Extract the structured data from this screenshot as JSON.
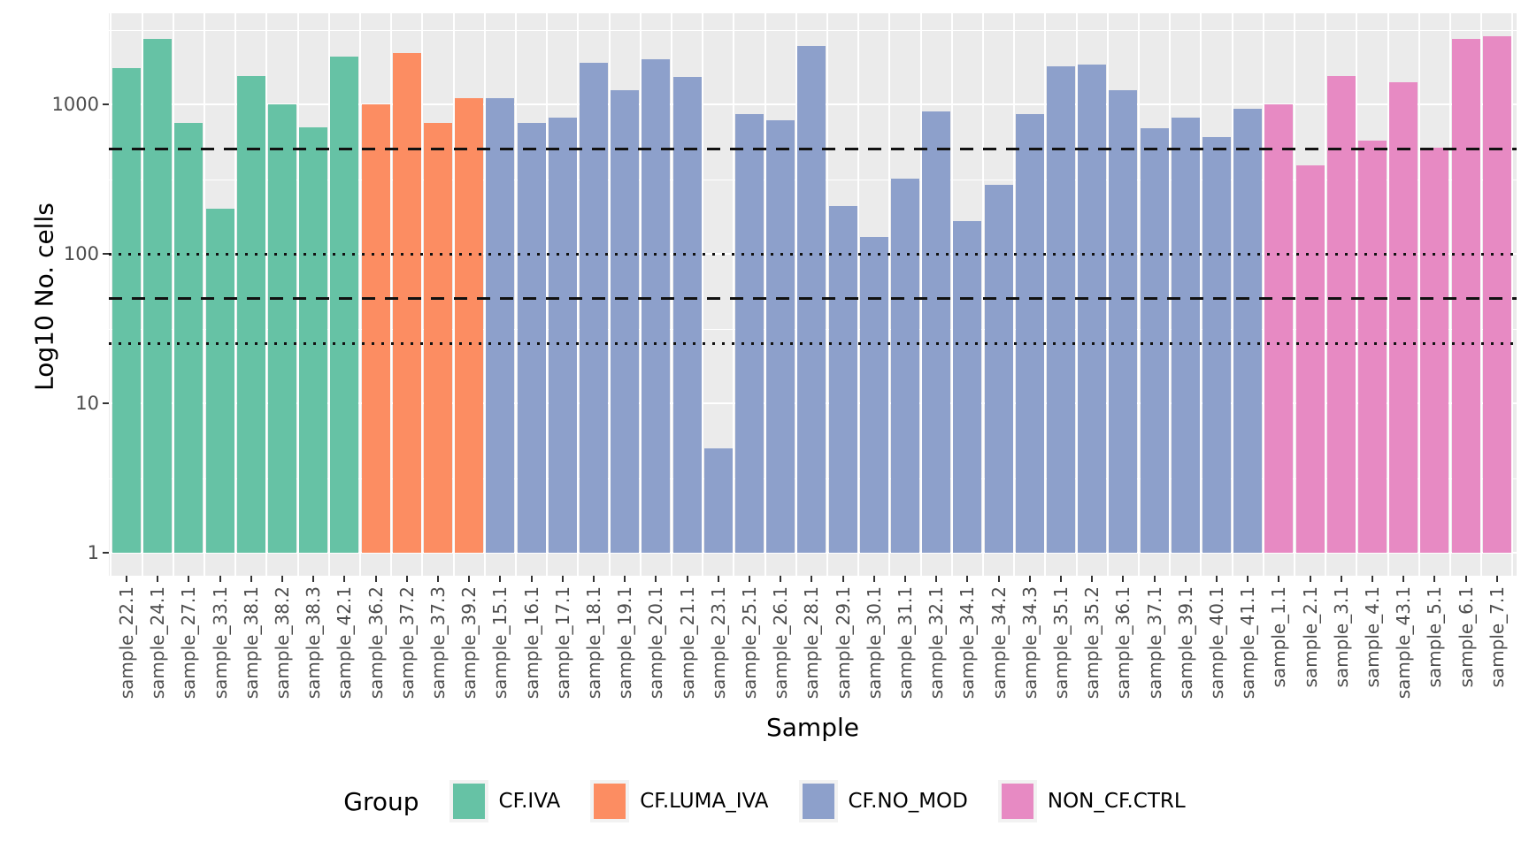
{
  "chart_data": {
    "type": "bar",
    "title": "",
    "xlabel": "Sample",
    "ylabel": "Log10 No. cells",
    "y_scale": "log10",
    "y_ticks": [
      "1000",
      "100",
      "10",
      "1"
    ],
    "y_tick_values": [
      1000,
      100,
      10,
      1
    ],
    "ylim": [
      0.7,
      4100
    ],
    "grid": "on",
    "legend_title": "Group",
    "legend_position": "bottom",
    "panel_background": "#EBEBEB",
    "reference_lines": [
      {
        "value": 500,
        "style": "dashed",
        "color": "#111111"
      },
      {
        "value": 100,
        "style": "dotted",
        "color": "#111111"
      },
      {
        "value": 50,
        "style": "dashed",
        "color": "#111111"
      },
      {
        "value": 25,
        "style": "dotted",
        "color": "#111111"
      }
    ],
    "groups": [
      {
        "name": "CF.IVA",
        "color": "#66C2A5"
      },
      {
        "name": "CF.LUMA_IVA",
        "color": "#FC8D62"
      },
      {
        "name": "CF.NO_MOD",
        "color": "#8DA0CB"
      },
      {
        "name": "NON_CF.CTRL",
        "color": "#E78AC3"
      }
    ],
    "bars": [
      {
        "sample": "sample_22.1",
        "group": 0,
        "value": 1750
      },
      {
        "sample": "sample_24.1",
        "group": 0,
        "value": 2750
      },
      {
        "sample": "sample_27.1",
        "group": 0,
        "value": 750
      },
      {
        "sample": "sample_33.1",
        "group": 0,
        "value": 200
      },
      {
        "sample": "sample_38.1",
        "group": 0,
        "value": 1550
      },
      {
        "sample": "sample_38.2",
        "group": 0,
        "value": 1000
      },
      {
        "sample": "sample_38.3",
        "group": 0,
        "value": 700
      },
      {
        "sample": "sample_42.1",
        "group": 0,
        "value": 2100
      },
      {
        "sample": "sample_36.2",
        "group": 1,
        "value": 1000
      },
      {
        "sample": "sample_37.2",
        "group": 1,
        "value": 2200
      },
      {
        "sample": "sample_37.3",
        "group": 1,
        "value": 750
      },
      {
        "sample": "sample_39.2",
        "group": 1,
        "value": 1100
      },
      {
        "sample": "sample_15.1",
        "group": 2,
        "value": 1100
      },
      {
        "sample": "sample_16.1",
        "group": 2,
        "value": 750
      },
      {
        "sample": "sample_17.1",
        "group": 2,
        "value": 810
      },
      {
        "sample": "sample_18.1",
        "group": 2,
        "value": 1900
      },
      {
        "sample": "sample_19.1",
        "group": 2,
        "value": 1250
      },
      {
        "sample": "sample_20.1",
        "group": 2,
        "value": 2000
      },
      {
        "sample": "sample_21.1",
        "group": 2,
        "value": 1520
      },
      {
        "sample": "sample_23.1",
        "group": 2,
        "value": 5
      },
      {
        "sample": "sample_25.1",
        "group": 2,
        "value": 860
      },
      {
        "sample": "sample_26.1",
        "group": 2,
        "value": 780
      },
      {
        "sample": "sample_28.1",
        "group": 2,
        "value": 2450
      },
      {
        "sample": "sample_29.1",
        "group": 2,
        "value": 210
      },
      {
        "sample": "sample_30.1",
        "group": 2,
        "value": 130
      },
      {
        "sample": "sample_31.1",
        "group": 2,
        "value": 320
      },
      {
        "sample": "sample_32.1",
        "group": 2,
        "value": 900
      },
      {
        "sample": "sample_34.1",
        "group": 2,
        "value": 165
      },
      {
        "sample": "sample_34.2",
        "group": 2,
        "value": 290
      },
      {
        "sample": "sample_34.3",
        "group": 2,
        "value": 860
      },
      {
        "sample": "sample_35.1",
        "group": 2,
        "value": 1800
      },
      {
        "sample": "sample_35.2",
        "group": 2,
        "value": 1850
      },
      {
        "sample": "sample_36.1",
        "group": 2,
        "value": 1250
      },
      {
        "sample": "sample_37.1",
        "group": 2,
        "value": 690
      },
      {
        "sample": "sample_39.1",
        "group": 2,
        "value": 820
      },
      {
        "sample": "sample_40.1",
        "group": 2,
        "value": 600
      },
      {
        "sample": "sample_41.1",
        "group": 2,
        "value": 930
      },
      {
        "sample": "sample_1.1",
        "group": 3,
        "value": 1000
      },
      {
        "sample": "sample_2.1",
        "group": 3,
        "value": 390
      },
      {
        "sample": "sample_3.1",
        "group": 3,
        "value": 1550
      },
      {
        "sample": "sample_4.1",
        "group": 3,
        "value": 570
      },
      {
        "sample": "sample_43.1",
        "group": 3,
        "value": 1400
      },
      {
        "sample": "sample_5.1",
        "group": 3,
        "value": 510
      },
      {
        "sample": "sample_6.1",
        "group": 3,
        "value": 2750
      },
      {
        "sample": "sample_7.1",
        "group": 3,
        "value": 2850
      }
    ]
  }
}
